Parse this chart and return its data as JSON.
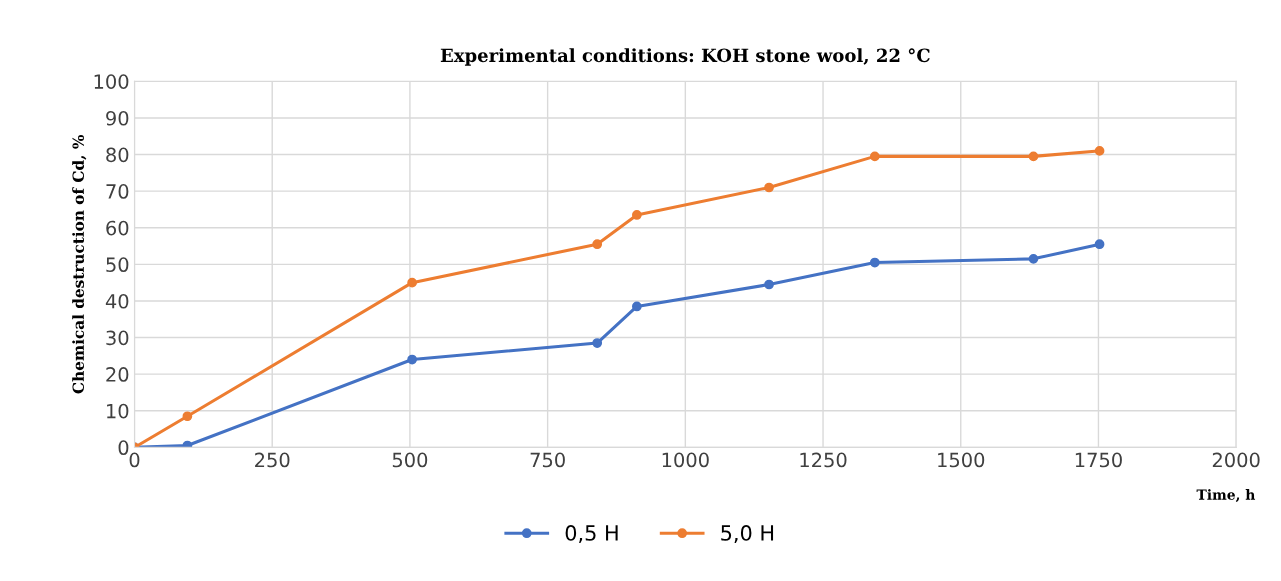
{
  "chart_data": {
    "type": "line",
    "title": "Experimental conditions: KOH stone wool, 22 °C",
    "xlabel": "Time, h",
    "ylabel": "Chemical destruction of Cd, %",
    "x": [
      0,
      96,
      504,
      840,
      912,
      1152,
      1344,
      1632,
      1752
    ],
    "series": [
      {
        "name": "0,5 H",
        "color": "#4472c4",
        "values": [
          0,
          0.5,
          24,
          28.5,
          38.5,
          44.5,
          50.5,
          51.5,
          55.5
        ]
      },
      {
        "name": "5,0 H",
        "color": "#ed7d31",
        "values": [
          0,
          8.5,
          45,
          55.5,
          63.5,
          71,
          79.5,
          79.5,
          81
        ]
      }
    ],
    "xlim": [
      0,
      2000
    ],
    "xticks": [
      0,
      250,
      500,
      750,
      1000,
      1250,
      1500,
      1750,
      2000
    ],
    "ylim": [
      0,
      100
    ],
    "yticks": [
      0,
      10,
      20,
      30,
      40,
      50,
      60,
      70,
      80,
      90,
      100
    ],
    "grid": true,
    "legend": "bottom",
    "marker": "circle",
    "line_style": "solid"
  }
}
